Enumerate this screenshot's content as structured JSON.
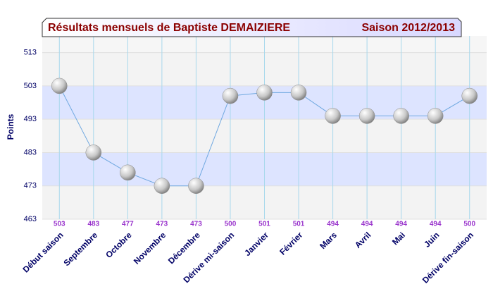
{
  "chart_data": {
    "type": "line",
    "title": "Résultats mensuels de  Baptiste DEMAIZIERE",
    "subtitle": "Saison 2012/2013",
    "y_label": "Points",
    "categories": [
      "Début saison",
      "Septembre",
      "Octobre",
      "Novembre",
      "Décembre",
      "Dérive mi-saison",
      "Janvier",
      "Février",
      "Mars",
      "Avril",
      "Mai",
      "Juin",
      "Dérive fin-saison"
    ],
    "values": [
      503,
      483,
      477,
      473,
      473,
      500,
      501,
      501,
      494,
      494,
      494,
      494,
      500
    ],
    "color": "#6fa8e0",
    "ylim": [
      463,
      518
    ],
    "yticks": [
      463,
      473,
      483,
      493,
      503,
      513
    ],
    "grid": true
  }
}
